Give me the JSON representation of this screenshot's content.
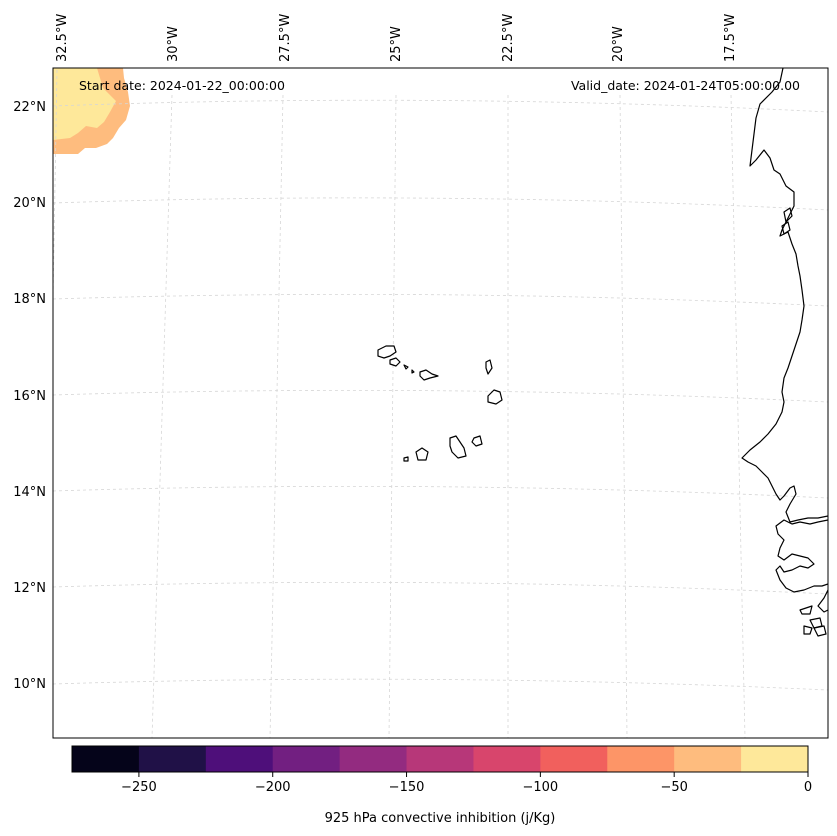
{
  "header": {
    "start_date": "Start date: 2024-01-22_00:00:00",
    "valid_date": "Valid_date: 2024-01-24T05:00:00.00"
  },
  "map": {
    "longitude_labels": [
      "32.5°W",
      "30°W",
      "27.5°W",
      "25°W",
      "22.5°W",
      "20°W",
      "17.5°W"
    ],
    "latitude_labels": [
      "22°N",
      "20°N",
      "18°N",
      "16°N",
      "14°N",
      "12°N",
      "10°N"
    ],
    "gridlines": true,
    "features": [
      "coastline-west-africa",
      "cape-verde-islands"
    ]
  },
  "colorbar": {
    "label": "925 hPa convective inhibition (j/Kg)",
    "tick_labels": [
      "−250",
      "−200",
      "−150",
      "−100",
      "−50",
      "0"
    ],
    "min": -275,
    "max": 0,
    "step": 25,
    "colors": [
      "#05041a",
      "#201147",
      "#4e0f7a",
      "#721f81",
      "#932b80",
      "#b73779",
      "#d8456c",
      "#f1605d",
      "#fd9567",
      "#febc7e",
      "#fee89a"
    ]
  }
}
